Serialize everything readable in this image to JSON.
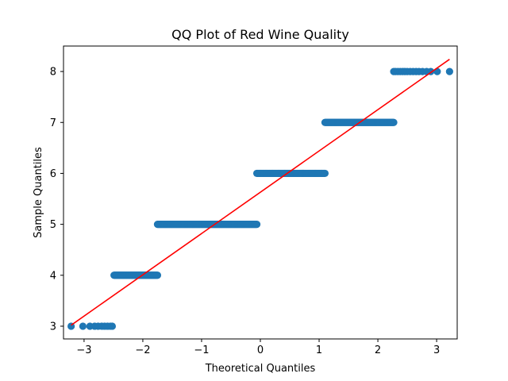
{
  "chart_data": {
    "type": "scatter",
    "title": "QQ Plot of Red Wine Quality",
    "xlabel": "Theoretical Quantiles",
    "ylabel": "Sample Quantiles",
    "xlim": [
      -3.35,
      3.35
    ],
    "ylim": [
      2.75,
      8.5
    ],
    "xticks": [
      -3,
      -2,
      -1,
      0,
      1,
      2,
      3
    ],
    "xtick_labels": [
      "−3",
      "−2",
      "−1",
      "0",
      "1",
      "2",
      "3"
    ],
    "yticks": [
      3,
      4,
      5,
      6,
      7,
      8
    ],
    "ytick_labels": [
      "3",
      "4",
      "5",
      "6",
      "7",
      "8"
    ],
    "grid": false,
    "marker_color": "#1f77b4",
    "line_color": "#ff0000",
    "series": [
      {
        "kind": "points",
        "groups": [
          {
            "y": 3,
            "x": [
              -3.22,
              -3.02,
              -2.9,
              -2.82,
              -2.76,
              -2.7,
              -2.65,
              -2.6,
              -2.55,
              -2.52
            ]
          },
          {
            "y": 4,
            "x_range": [
              -2.49,
              -1.75
            ]
          },
          {
            "y": 5,
            "x_range": [
              -1.75,
              -0.06
            ]
          },
          {
            "y": 6,
            "x_range": [
              -0.06,
              1.1
            ]
          },
          {
            "y": 7,
            "x_range": [
              1.1,
              2.27
            ]
          },
          {
            "y": 8,
            "x": [
              2.27,
              2.3,
              2.34,
              2.38,
              2.42,
              2.46,
              2.5,
              2.55,
              2.6,
              2.65,
              2.7,
              2.76,
              2.83,
              2.9,
              3.01,
              3.22
            ]
          }
        ]
      },
      {
        "kind": "reference-line",
        "x": [
          -3.22,
          3.22
        ],
        "y": [
          3.02,
          8.24
        ]
      }
    ]
  }
}
